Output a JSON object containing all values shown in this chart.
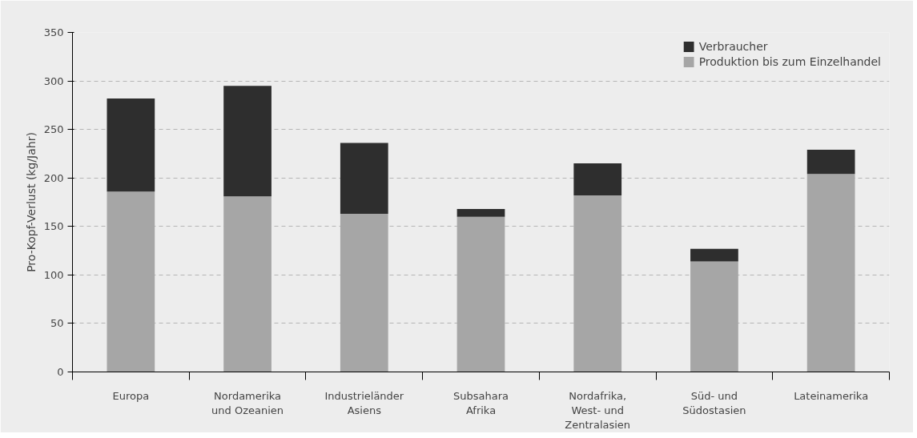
{
  "chart_data": {
    "type": "bar",
    "stacked": true,
    "ylabel": "Pro-Kopf-Verlust (kg/Jahr)",
    "categories": [
      "Europa",
      "Nordamerika\nund Ozeanien",
      "Industrieländer\nAsiens",
      "Subsahara\nAfrika",
      "Nordafrika,\nWest- und\nZentralasien",
      "Süd- und\nSüdostasien",
      "Lateinamerika"
    ],
    "series": [
      {
        "name": "Produktion bis zum Einzelhandel",
        "color": "#a6a6a6",
        "values": [
          186,
          181,
          163,
          160,
          182,
          114,
          204
        ]
      },
      {
        "name": "Verbraucher",
        "color": "#2e2e2e",
        "values": [
          96,
          114,
          73,
          8,
          33,
          13,
          25
        ]
      }
    ],
    "ylim": [
      0,
      350
    ],
    "yticks": [
      0,
      50,
      100,
      150,
      200,
      250,
      300,
      350
    ],
    "grid": "y",
    "legend": "top right"
  }
}
